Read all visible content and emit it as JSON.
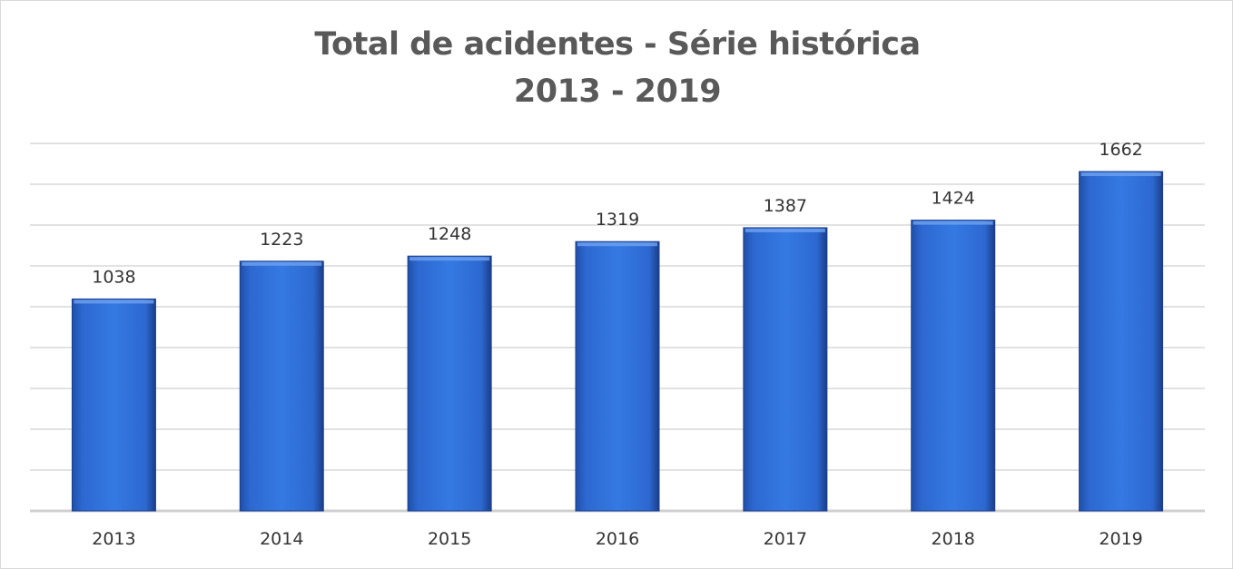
{
  "chart_data": {
    "type": "bar",
    "title": "Total de acidentes - Série histórica",
    "subtitle": "2013 - 2019",
    "categories": [
      "2013",
      "2014",
      "2015",
      "2016",
      "2017",
      "2018",
      "2019"
    ],
    "values": [
      1038,
      1223,
      1248,
      1319,
      1387,
      1424,
      1662
    ],
    "xlabel": "",
    "ylabel": "",
    "ylim": [
      0,
      1800
    ],
    "grid": true,
    "legend": "none",
    "bar_color": "#2f6fd6",
    "bar_color_dark": "#1c3f8f"
  }
}
